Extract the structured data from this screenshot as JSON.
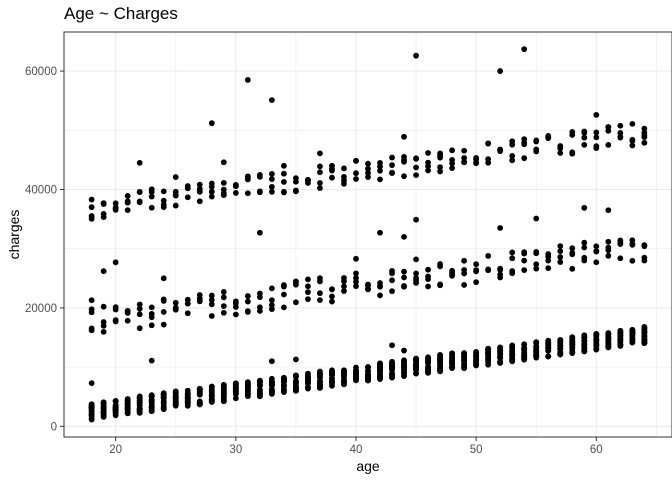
{
  "chart_data": {
    "type": "scatter",
    "title": "Age ~ Charges",
    "xlabel": "age",
    "ylabel": "charges",
    "xlim": [
      15.7,
      66.3
    ],
    "ylim": [
      -1800,
      66600
    ],
    "x_ticks": [
      "20",
      "30",
      "40",
      "50",
      "60"
    ],
    "x_tick_values": [
      20,
      30,
      40,
      50,
      60
    ],
    "y_ticks": [
      "0",
      "20000",
      "40000",
      "60000"
    ],
    "y_tick_values": [
      0,
      20000,
      40000,
      60000
    ],
    "grid": true,
    "theme": "bw",
    "point_color": "#000000",
    "grid_color": "#ebebeb",
    "border_color": "#333333",
    "bands": [
      {
        "name": "lower",
        "x_min": 18,
        "x_max": 64,
        "y_start": 1150,
        "slope": 280,
        "spread": 2800,
        "per_age": 22
      },
      {
        "name": "middle",
        "x_min": 18,
        "x_max": 64,
        "y_start": 15500,
        "slope": 270,
        "spread": 4500,
        "per_age": 4
      },
      {
        "name": "upper",
        "x_min": 18,
        "x_max": 64,
        "y_start": 35000,
        "slope": 275,
        "spread": 3800,
        "per_age": 4
      }
    ],
    "outliers": [
      {
        "x": 18,
        "y": 7300
      },
      {
        "x": 18,
        "y": 21300
      },
      {
        "x": 19,
        "y": 26200
      },
      {
        "x": 20,
        "y": 27700
      },
      {
        "x": 22,
        "y": 44500
      },
      {
        "x": 23,
        "y": 11100
      },
      {
        "x": 24,
        "y": 25000
      },
      {
        "x": 25,
        "y": 42100
      },
      {
        "x": 27,
        "y": 39600
      },
      {
        "x": 28,
        "y": 51200
      },
      {
        "x": 29,
        "y": 44600
      },
      {
        "x": 31,
        "y": 58500
      },
      {
        "x": 32,
        "y": 32700
      },
      {
        "x": 33,
        "y": 55100
      },
      {
        "x": 33,
        "y": 11000
      },
      {
        "x": 34,
        "y": 44000
      },
      {
        "x": 35,
        "y": 11300
      },
      {
        "x": 37,
        "y": 46100
      },
      {
        "x": 40,
        "y": 28300
      },
      {
        "x": 42,
        "y": 32700
      },
      {
        "x": 43,
        "y": 13700
      },
      {
        "x": 44,
        "y": 48900
      },
      {
        "x": 44,
        "y": 32000
      },
      {
        "x": 44,
        "y": 12800
      },
      {
        "x": 45,
        "y": 62600
      },
      {
        "x": 45,
        "y": 34900
      },
      {
        "x": 45,
        "y": 28200
      },
      {
        "x": 47,
        "y": 45700
      },
      {
        "x": 52,
        "y": 60000
      },
      {
        "x": 52,
        "y": 33500
      },
      {
        "x": 54,
        "y": 63700
      },
      {
        "x": 55,
        "y": 35100
      },
      {
        "x": 59,
        "y": 36900
      },
      {
        "x": 60,
        "y": 52600
      },
      {
        "x": 61,
        "y": 36500
      },
      {
        "x": 64,
        "y": 49600
      },
      {
        "x": 64,
        "y": 16500
      }
    ]
  }
}
